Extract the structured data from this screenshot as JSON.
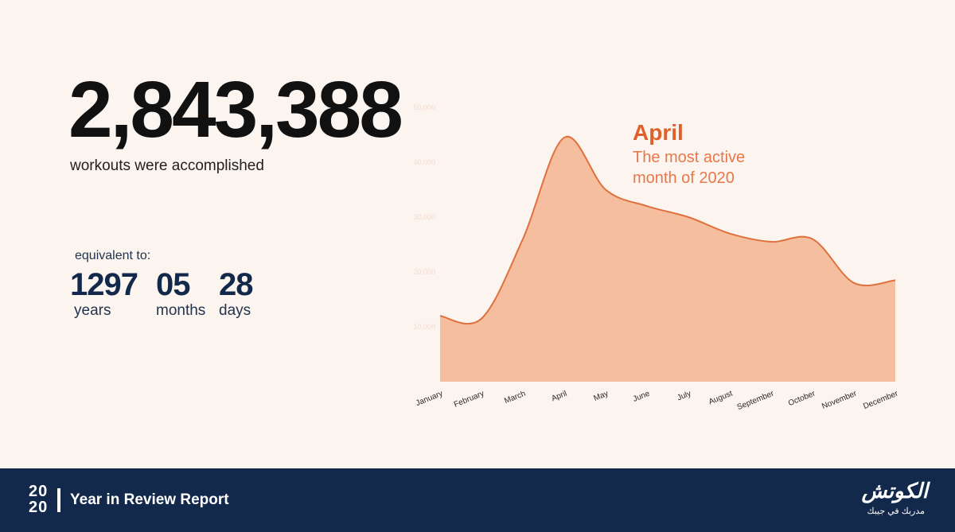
{
  "headline": {
    "number": "2,843,388",
    "caption": "workouts were accomplished"
  },
  "equivalent": {
    "label": "equivalent to:",
    "years": {
      "value": "1297",
      "unit": "years"
    },
    "months": {
      "value": "05",
      "unit": "months"
    },
    "days": {
      "value": "28",
      "unit": "days"
    }
  },
  "chart_data": {
    "type": "area",
    "categories": [
      "January",
      "February",
      "March",
      "April",
      "May",
      "June",
      "July",
      "August",
      "September",
      "October",
      "November",
      "December"
    ],
    "values": [
      12000,
      11500,
      26000,
      44500,
      35000,
      32000,
      30000,
      27000,
      25500,
      26000,
      18000,
      18500
    ],
    "yticks": [
      "10,000",
      "20,000",
      "30,000",
      "40,000",
      "50,000"
    ],
    "yticks_values": [
      10000,
      20000,
      30000,
      40000,
      50000
    ],
    "ylim": [
      0,
      50000
    ],
    "title": "",
    "xlabel": "",
    "ylabel": "",
    "annotation": {
      "title": "April",
      "line1": "The most active",
      "line2": "month of 2020"
    },
    "fill_color": "#f5bf9f",
    "line_color": "#e0703e"
  },
  "footer": {
    "year_top": "20",
    "year_bottom": "20",
    "title": "Year in Review Report",
    "logo_main": "الكوتش",
    "logo_sub": "مدربك في جيبك"
  },
  "colors": {
    "background": "#fbf4ef",
    "navy": "#13294b",
    "accent": "#e0602c"
  }
}
